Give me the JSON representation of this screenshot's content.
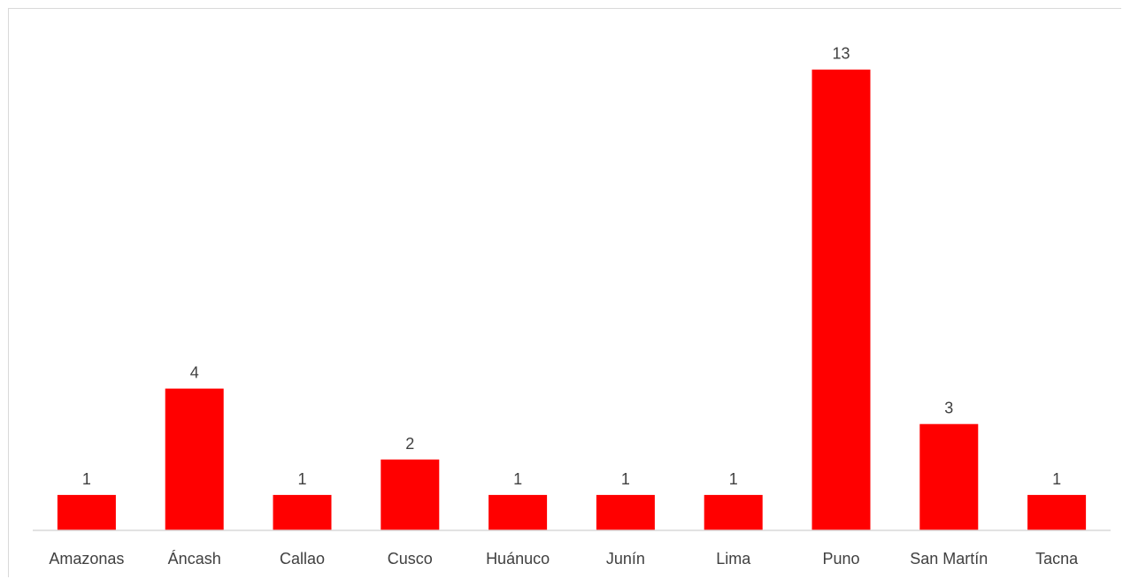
{
  "chart_data": {
    "type": "bar",
    "categories": [
      "Amazonas",
      "Áncash",
      "Callao",
      "Cusco",
      "Huánuco",
      "Junín",
      "Lima",
      "Puno",
      "San Martín",
      "Tacna"
    ],
    "values": [
      1,
      4,
      1,
      2,
      1,
      1,
      1,
      13,
      3,
      1
    ],
    "data_labels": [
      "1",
      "4",
      "1",
      "2",
      "1",
      "1",
      "1",
      "13",
      "3",
      "1"
    ],
    "title": "",
    "xlabel": "",
    "ylabel": "",
    "ylim": [
      0,
      13
    ],
    "grid": false,
    "legend": "none",
    "bar_color": "#ff0000",
    "axis_color": "#d9d9d9",
    "label_color": "#404040"
  }
}
